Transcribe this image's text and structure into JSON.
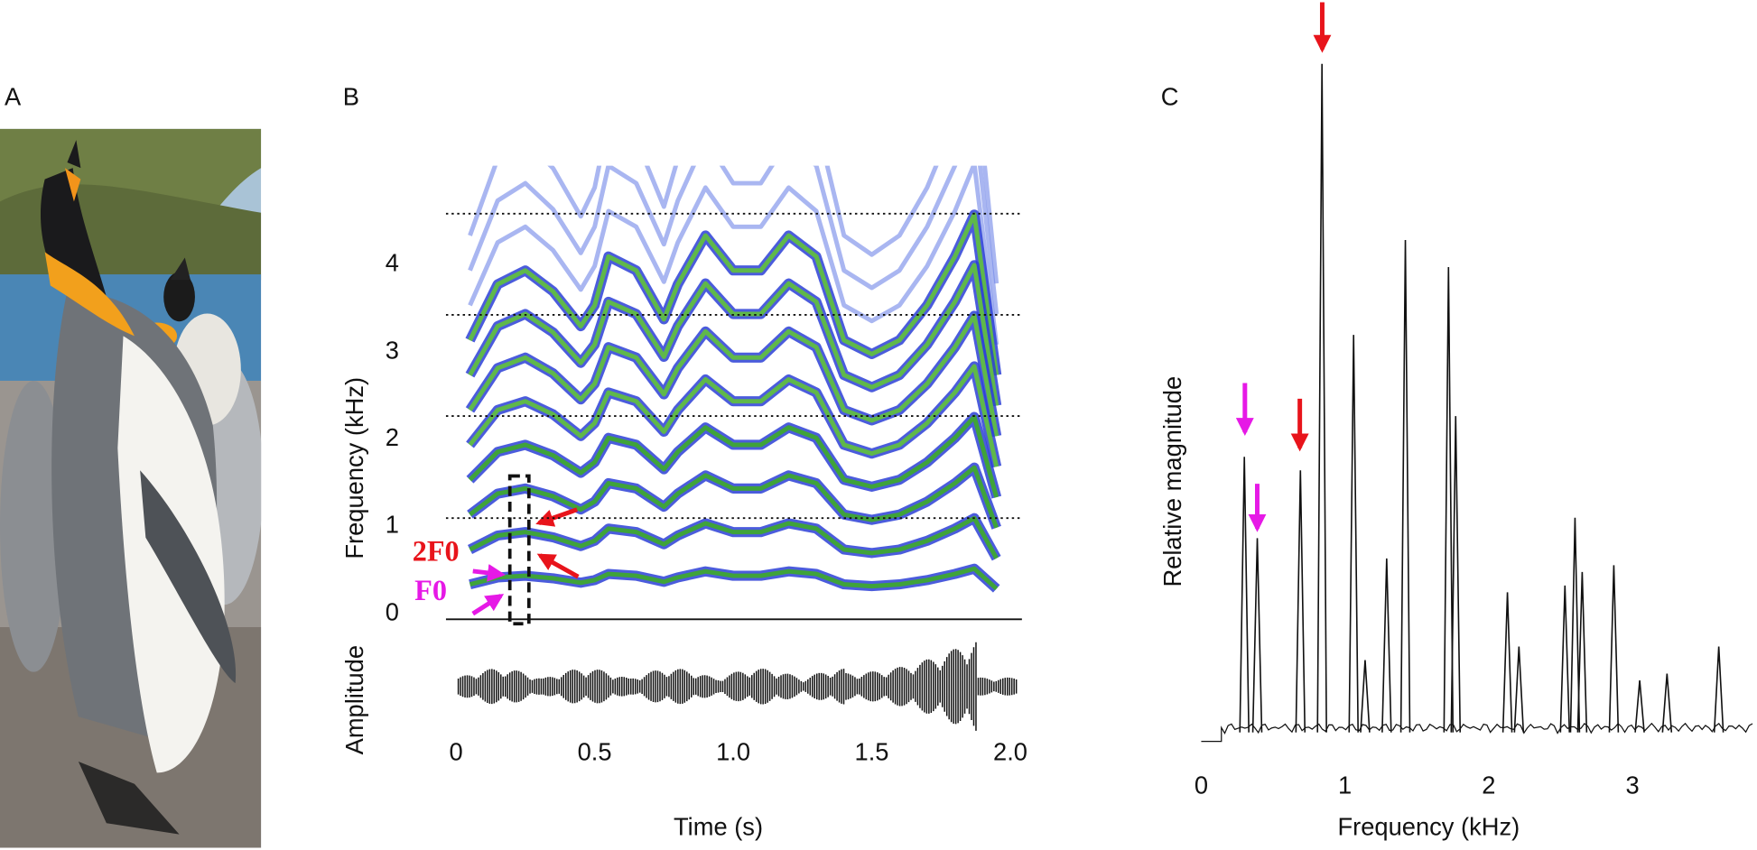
{
  "panel_labels": [
    "A",
    "B",
    "C"
  ],
  "chart_data": [
    {
      "type": "spectrogram",
      "ylabel": "Frequency (kHz)",
      "xlabel": "Time (s)",
      "waveform_label": "Amplitude",
      "xlim": [
        0,
        2.05
      ],
      "ylim": [
        0,
        5.2
      ],
      "xticks": [
        0,
        0.5,
        {
          "value": 1,
          "label": "1.0"
        },
        1.5,
        {
          "value": 2,
          "label": "2.0"
        }
      ],
      "yticks": [
        0,
        1,
        2,
        3,
        4
      ],
      "dotted_lines": [
        1.16,
        2.33,
        3.49,
        4.65
      ],
      "f0": {
        "x": [
          0.05,
          0.15,
          0.25,
          0.35,
          0.45,
          0.5,
          0.55,
          0.65,
          0.75,
          0.8,
          0.9,
          1.0,
          1.1,
          1.2,
          1.3,
          1.4,
          1.5,
          1.6,
          1.7,
          1.8,
          1.87,
          1.95
        ],
        "values": [
          0.4,
          0.48,
          0.5,
          0.47,
          0.42,
          0.45,
          0.52,
          0.5,
          0.43,
          0.48,
          0.55,
          0.5,
          0.5,
          0.55,
          0.52,
          0.4,
          0.38,
          0.4,
          0.45,
          0.52,
          0.58,
          0.35
        ]
      },
      "harmonics": 11,
      "annotations": [
        {
          "text": "2F0",
          "color": "#e8141b"
        },
        {
          "text": "F0",
          "color": "#e619e6"
        }
      ]
    },
    {
      "type": "spectrum",
      "xlabel": "Frequency (kHz)",
      "ylabel": "Relative magnitude",
      "xlim": [
        0,
        3.85
      ],
      "ylim": [
        0,
        1
      ],
      "xticks": [
        0,
        1,
        2,
        3
      ],
      "peaks": {
        "x": [
          0.3,
          0.39,
          0.69,
          0.84,
          1.06,
          1.14,
          1.29,
          1.42,
          1.72,
          1.77,
          2.13,
          2.21,
          2.53,
          2.6,
          2.65,
          2.87,
          3.05,
          3.24,
          3.6
        ],
        "values": [
          0.42,
          0.3,
          0.4,
          1.0,
          0.6,
          0.12,
          0.27,
          0.74,
          0.7,
          0.48,
          0.22,
          0.14,
          0.23,
          0.33,
          0.25,
          0.26,
          0.09,
          0.1,
          0.14
        ]
      }
    }
  ]
}
